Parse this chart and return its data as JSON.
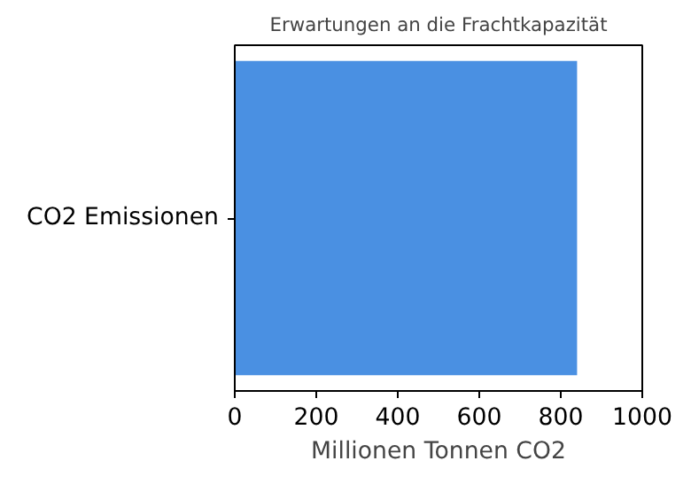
{
  "chart_data": {
    "type": "bar",
    "orientation": "horizontal",
    "title": "Erwartungen an die Frachtkapazität",
    "xlabel": "Millionen Tonnen CO2",
    "categories": [
      "CO2 Emissionen"
    ],
    "values": [
      840
    ],
    "color": "#4a90e2",
    "xlim": [
      0,
      1000
    ],
    "xticks": [
      0,
      200,
      400,
      600,
      800,
      1000
    ],
    "grid": false
  }
}
